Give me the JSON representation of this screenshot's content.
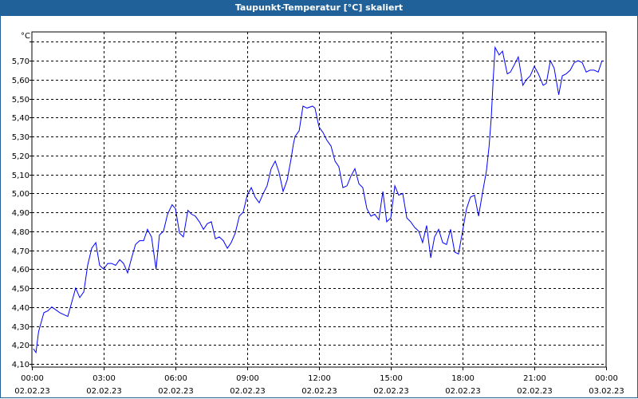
{
  "chart_data": {
    "type": "line",
    "title": "Taupunkt-Temperatur [°C] skaliert",
    "ylabel": "°C",
    "xlabel": "",
    "ylim": [
      4.1,
      5.8
    ],
    "xlim_hours": [
      0,
      24
    ],
    "grid": true,
    "line_color": "#0000ff",
    "y_ticks": [
      "4,10",
      "4,20",
      "4,30",
      "4,40",
      "4,50",
      "4,60",
      "4,70",
      "4,80",
      "4,90",
      "5,00",
      "5,10",
      "5,20",
      "5,30",
      "5,40",
      "5,50",
      "5,60",
      "5,70"
    ],
    "x_ticks": [
      {
        "time": "00:00",
        "date": "02.02.23"
      },
      {
        "time": "03:00",
        "date": "02.02.23"
      },
      {
        "time": "06:00",
        "date": "02.02.23"
      },
      {
        "time": "09:00",
        "date": "02.02.23"
      },
      {
        "time": "12:00",
        "date": "02.02.23"
      },
      {
        "time": "15:00",
        "date": "02.02.23"
      },
      {
        "time": "18:00",
        "date": "02.02.23"
      },
      {
        "time": "21:00",
        "date": "02.02.23"
      },
      {
        "time": "00:00",
        "date": "03.02.23"
      }
    ],
    "series": [
      {
        "name": "Taupunkt-Temperatur",
        "points_hours_value": [
          [
            0.06,
            4.18
          ],
          [
            0.17,
            4.16
          ],
          [
            0.28,
            4.27
          ],
          [
            0.5,
            4.37
          ],
          [
            0.67,
            4.38
          ],
          [
            0.83,
            4.4
          ],
          [
            1.17,
            4.37
          ],
          [
            1.5,
            4.35
          ],
          [
            1.83,
            4.5
          ],
          [
            2,
            4.45
          ],
          [
            2.17,
            4.48
          ],
          [
            2.33,
            4.62
          ],
          [
            2.5,
            4.71
          ],
          [
            2.67,
            4.74
          ],
          [
            2.83,
            4.62
          ],
          [
            3,
            4.6
          ],
          [
            3.17,
            4.63
          ],
          [
            3.33,
            4.63
          ],
          [
            3.5,
            4.62
          ],
          [
            3.67,
            4.65
          ],
          [
            3.83,
            4.63
          ],
          [
            4,
            4.58
          ],
          [
            4.17,
            4.66
          ],
          [
            4.33,
            4.73
          ],
          [
            4.5,
            4.75
          ],
          [
            4.67,
            4.75
          ],
          [
            4.83,
            4.81
          ],
          [
            5,
            4.77
          ],
          [
            5.19,
            4.6
          ],
          [
            5.33,
            4.78
          ],
          [
            5.5,
            4.8
          ],
          [
            5.67,
            4.89
          ],
          [
            5.86,
            4.94
          ],
          [
            6,
            4.92
          ],
          [
            6.17,
            4.79
          ],
          [
            6.33,
            4.77
          ],
          [
            6.52,
            4.91
          ],
          [
            6.67,
            4.89
          ],
          [
            6.83,
            4.88
          ],
          [
            7,
            4.85
          ],
          [
            7.17,
            4.81
          ],
          [
            7.33,
            4.84
          ],
          [
            7.5,
            4.85
          ],
          [
            7.67,
            4.76
          ],
          [
            7.83,
            4.77
          ],
          [
            8,
            4.75
          ],
          [
            8.17,
            4.71
          ],
          [
            8.33,
            4.74
          ],
          [
            8.5,
            4.79
          ],
          [
            8.67,
            4.88
          ],
          [
            8.83,
            4.9
          ],
          [
            9,
            4.99
          ],
          [
            9.17,
            5.03
          ],
          [
            9.33,
            4.98
          ],
          [
            9.5,
            4.95
          ],
          [
            9.67,
            5.0
          ],
          [
            9.83,
            5.04
          ],
          [
            10,
            5.13
          ],
          [
            10.17,
            5.17
          ],
          [
            10.33,
            5.11
          ],
          [
            10.5,
            5.01
          ],
          [
            10.67,
            5.07
          ],
          [
            10.83,
            5.18
          ],
          [
            10.93,
            5.26
          ],
          [
            11,
            5.3
          ],
          [
            11.17,
            5.33
          ],
          [
            11.33,
            5.46
          ],
          [
            11.5,
            5.45
          ],
          [
            11.73,
            5.46
          ],
          [
            11.83,
            5.45
          ],
          [
            12,
            5.35
          ],
          [
            12.17,
            5.32
          ],
          [
            12.33,
            5.28
          ],
          [
            12.5,
            5.25
          ],
          [
            12.67,
            5.17
          ],
          [
            12.83,
            5.14
          ],
          [
            13,
            5.03
          ],
          [
            13.17,
            5.04
          ],
          [
            13.33,
            5.09
          ],
          [
            13.5,
            5.13
          ],
          [
            13.67,
            5.05
          ],
          [
            13.83,
            5.03
          ],
          [
            14,
            4.92
          ],
          [
            14.17,
            4.88
          ],
          [
            14.33,
            4.89
          ],
          [
            14.5,
            4.86
          ],
          [
            14.67,
            5.01
          ],
          [
            14.83,
            4.85
          ],
          [
            15,
            4.87
          ],
          [
            15.17,
            5.04
          ],
          [
            15.33,
            4.99
          ],
          [
            15.5,
            5.0
          ],
          [
            15.67,
            4.87
          ],
          [
            15.83,
            4.85
          ],
          [
            16,
            4.82
          ],
          [
            16.17,
            4.8
          ],
          [
            16.33,
            4.74
          ],
          [
            16.5,
            4.83
          ],
          [
            16.67,
            4.66
          ],
          [
            16.83,
            4.77
          ],
          [
            17,
            4.81
          ],
          [
            17.17,
            4.74
          ],
          [
            17.33,
            4.73
          ],
          [
            17.5,
            4.81
          ],
          [
            17.67,
            4.69
          ],
          [
            17.83,
            4.68
          ],
          [
            18,
            4.8
          ],
          [
            18.17,
            4.92
          ],
          [
            18.33,
            4.98
          ],
          [
            18.5,
            4.99
          ],
          [
            18.67,
            4.88
          ],
          [
            18.83,
            5.0
          ],
          [
            19,
            5.12
          ],
          [
            19.11,
            5.25
          ],
          [
            19.2,
            5.4
          ],
          [
            19.28,
            5.6
          ],
          [
            19.36,
            5.77
          ],
          [
            19.53,
            5.73
          ],
          [
            19.67,
            5.75
          ],
          [
            19.87,
            5.63
          ],
          [
            20,
            5.64
          ],
          [
            20.17,
            5.68
          ],
          [
            20.33,
            5.72
          ],
          [
            20.52,
            5.57
          ],
          [
            20.67,
            5.6
          ],
          [
            20.83,
            5.62
          ],
          [
            21,
            5.67
          ],
          [
            21.17,
            5.63
          ],
          [
            21.37,
            5.57
          ],
          [
            21.5,
            5.58
          ],
          [
            21.67,
            5.7
          ],
          [
            21.83,
            5.66
          ],
          [
            22.02,
            5.52
          ],
          [
            22.17,
            5.62
          ],
          [
            22.33,
            5.63
          ],
          [
            22.5,
            5.65
          ],
          [
            22.67,
            5.69
          ],
          [
            22.83,
            5.7
          ],
          [
            23,
            5.69
          ],
          [
            23.17,
            5.64
          ],
          [
            23.33,
            5.65
          ],
          [
            23.5,
            5.65
          ],
          [
            23.67,
            5.64
          ],
          [
            23.83,
            5.7
          ]
        ]
      }
    ]
  }
}
